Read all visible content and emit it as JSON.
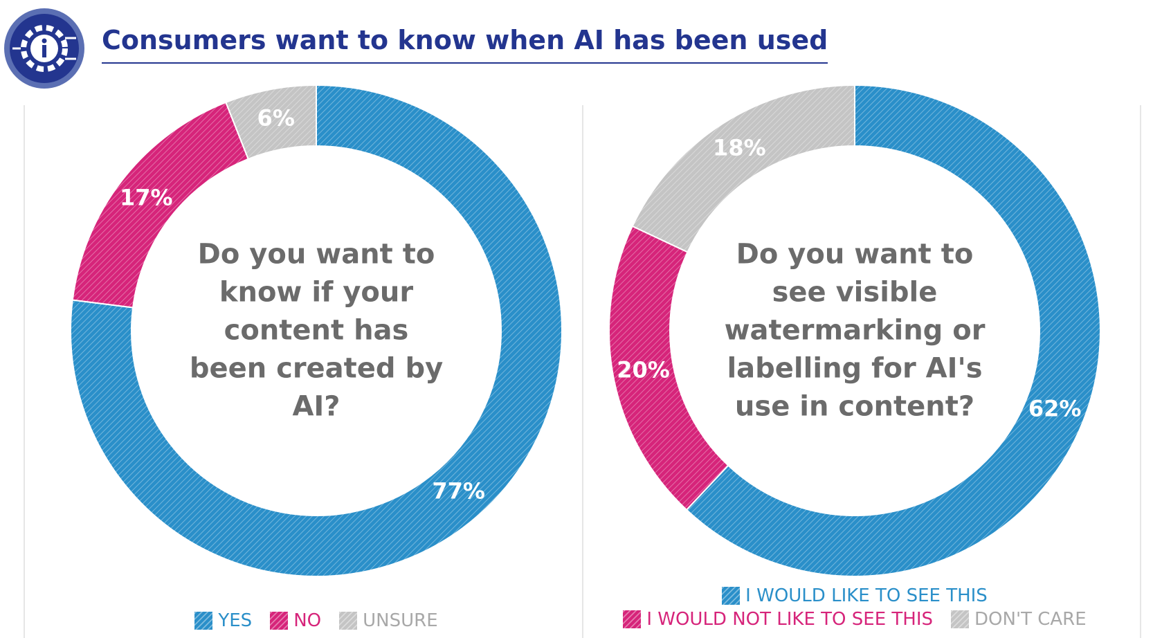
{
  "title": "Consumers want to know when AI has been used",
  "chart_data": [
    {
      "type": "pie",
      "donut": true,
      "center_text": "Do you want to know if your content has been created by AI?",
      "categories": [
        "YES",
        "NO",
        "UNSURE"
      ],
      "values": [
        77,
        17,
        6
      ],
      "value_labels": [
        "77%",
        "17%",
        "6%"
      ],
      "colors": [
        "#2a8fc9",
        "#d6247a",
        "#c4c4c4"
      ]
    },
    {
      "type": "pie",
      "donut": true,
      "center_text": "Do you want to see visible watermarking or labelling for AI's use in content?",
      "categories": [
        "I WOULD LIKE TO SEE THIS",
        "I WOULD NOT LIKE TO SEE THIS",
        "DON'T CARE"
      ],
      "values": [
        62,
        20,
        18
      ],
      "value_labels": [
        "62%",
        "20%",
        "18%"
      ],
      "colors": [
        "#2a8fc9",
        "#d6247a",
        "#c4c4c4"
      ]
    }
  ]
}
